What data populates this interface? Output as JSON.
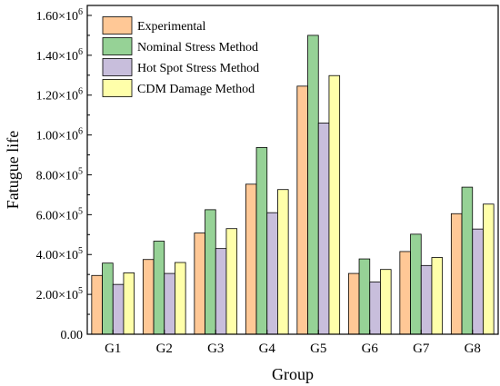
{
  "chart_data": {
    "type": "bar",
    "xlabel": "Group",
    "ylabel": "Fatugue life",
    "categories": [
      "G1",
      "G2",
      "G3",
      "G4",
      "G5",
      "G6",
      "G7",
      "G8"
    ],
    "ylim": [
      0,
      1650000
    ],
    "yticks": [
      {
        "value": 0,
        "label": "0.00"
      },
      {
        "value": 200000,
        "label": "2.00×10",
        "exp": "5"
      },
      {
        "value": 400000,
        "label": "4.00×10",
        "exp": "5"
      },
      {
        "value": 600000,
        "label": "6.00×10",
        "exp": "5"
      },
      {
        "value": 800000,
        "label": "8.00×10",
        "exp": "5"
      },
      {
        "value": 1000000,
        "label": "1.00×10",
        "exp": "6"
      },
      {
        "value": 1200000,
        "label": "1.20×10",
        "exp": "6"
      },
      {
        "value": 1400000,
        "label": "1.40×10",
        "exp": "6"
      },
      {
        "value": 1600000,
        "label": "1.60×10",
        "exp": "6"
      }
    ],
    "grid": false,
    "legend_position": "top-left",
    "series": [
      {
        "name": "Experimental",
        "color": "#FFC896",
        "values": [
          295000,
          375000,
          508000,
          753000,
          1245000,
          305000,
          415000,
          605000
        ]
      },
      {
        "name": "Nominal Stress Method",
        "color": "#96D296",
        "values": [
          357000,
          467000,
          625000,
          937000,
          1500000,
          378000,
          502000,
          738000
        ]
      },
      {
        "name": "Hot Spot Stress Method",
        "color": "#C8BEDC",
        "values": [
          250000,
          305000,
          430000,
          610000,
          1060000,
          262000,
          345000,
          528000
        ]
      },
      {
        "name": "CDM Damage Method",
        "color": "#FFFFAA",
        "values": [
          308000,
          360000,
          530000,
          726000,
          1298000,
          325000,
          385000,
          653000
        ]
      }
    ]
  }
}
